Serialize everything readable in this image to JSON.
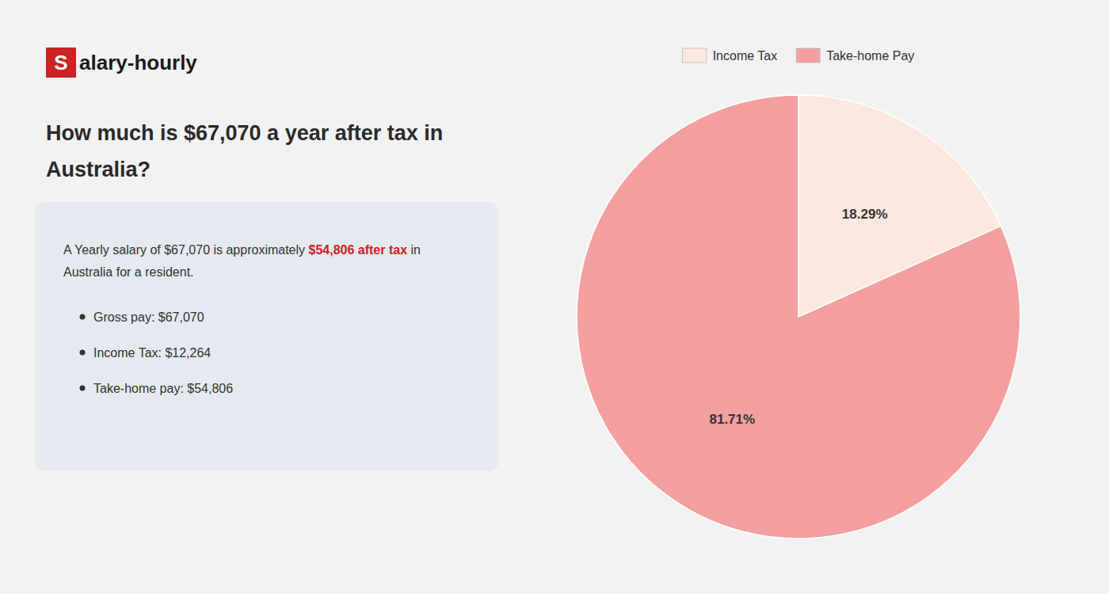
{
  "chart_data": {
    "type": "pie",
    "title": [
      "How much is $67,070 a year after tax in",
      "Australia?"
    ],
    "categories": [
      "Income Tax",
      "Take-home Pay"
    ],
    "values": [
      18.29,
      81.71
    ],
    "value_labels": [
      "18.29%",
      "81.71%"
    ],
    "colors": [
      "#fce8df",
      "#f4a0a0"
    ],
    "data_labels": true,
    "legend": "top",
    "annotations": [
      "S",
      "alary-hourly",
      "A Yearly salary of $67,070 is approximately ",
      "$54,806 after tax",
      " in",
      "Australia for a resident.",
      "Gross pay: $67,070",
      "Income Tax: $12,264",
      "Take-home pay: $54,806"
    ]
  }
}
